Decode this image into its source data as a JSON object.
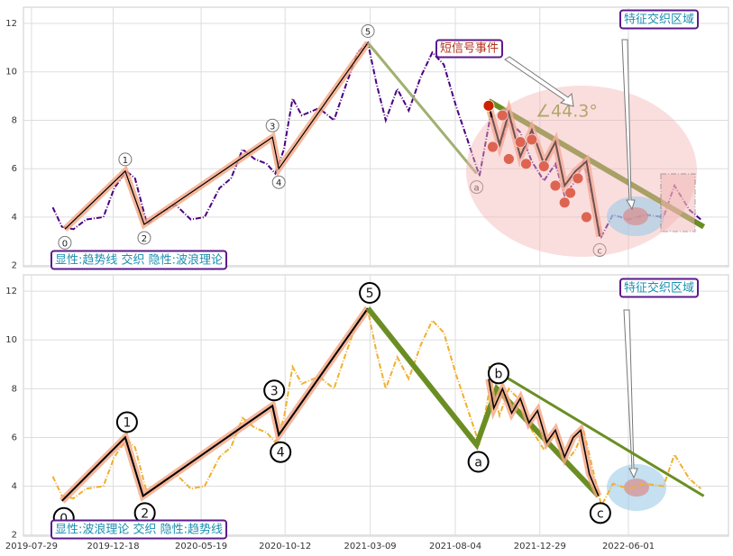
{
  "chart_data": [
    {
      "type": "line",
      "xlim": [
        "2019-07-15",
        "2022-11-22"
      ],
      "ylim": [
        1.95,
        12.67
      ],
      "yticks": [
        2,
        4,
        6,
        8,
        10,
        12
      ],
      "grid": true,
      "x": [
        "2019-09-04",
        "2019-09-20",
        "2019-10-10",
        "2019-11-01",
        "2019-12-01",
        "2019-12-20",
        "2020-01-10",
        "2020-01-25",
        "2020-02-15",
        "2020-03-10",
        "2020-04-05",
        "2020-05-01",
        "2020-05-25",
        "2020-06-20",
        "2020-07-10",
        "2020-07-30",
        "2020-08-20",
        "2020-09-10",
        "2020-09-25",
        "2020-10-10",
        "2020-10-25",
        "2020-11-10",
        "2020-12-10",
        "2021-01-05",
        "2021-01-25",
        "2021-02-15",
        "2021-03-05",
        "2021-03-20",
        "2021-04-05",
        "2021-04-25",
        "2021-05-15",
        "2021-06-05",
        "2021-06-25",
        "2021-07-15",
        "2021-08-05",
        "2021-08-25",
        "2021-09-15",
        "2021-10-05",
        "2021-10-20",
        "2021-11-05",
        "2021-11-25",
        "2021-12-15",
        "2022-01-05",
        "2022-01-25",
        "2022-02-10",
        "2022-03-01",
        "2022-03-15",
        "2022-04-01",
        "2022-04-15",
        "2022-05-05",
        "2022-06-01",
        "2022-07-01",
        "2022-08-01",
        "2022-08-20",
        "2022-09-15",
        "2022-10-05"
      ],
      "series": [
        {
          "color": "#4b0082",
          "values": [
            4.4,
            3.6,
            3.5,
            3.9,
            4.0,
            5.2,
            5.9,
            5.6,
            3.7,
            4.2,
            4.5,
            3.9,
            4.0,
            5.2,
            5.6,
            6.8,
            6.4,
            6.2,
            5.8,
            6.8,
            8.9,
            8.2,
            8.5,
            8.0,
            9.4,
            10.8,
            11.2,
            9.5,
            8.0,
            9.3,
            8.4,
            9.8,
            10.8,
            10.3,
            8.6,
            7.2,
            5.7,
            8.3,
            6.9,
            8.0,
            7.5,
            6.3,
            5.5,
            6.2,
            4.9,
            5.5,
            6.3,
            4.6,
            3.2,
            4.1,
            3.9,
            4.1,
            4.0,
            5.3,
            4.3,
            3.9
          ]
        }
      ],
      "waves": [
        {
          "color": "#000000",
          "halo": "#f4a582",
          "width": 1.2,
          "x": [
            "2019-09-25",
            "2020-01-08",
            "2020-02-10",
            "2020-09-20",
            "2020-10-01",
            "2021-03-05"
          ],
          "values": [
            3.5,
            5.9,
            3.7,
            7.3,
            6.0,
            11.2
          ],
          "labels": [
            "0",
            "1",
            "2",
            "3",
            "4",
            "5"
          ]
        },
        {
          "color": "#a0b070",
          "width": 3,
          "x": [
            "2021-03-05",
            "2021-09-10"
          ],
          "values": [
            11.2,
            5.8
          ],
          "labels": [
            null,
            "a"
          ]
        },
        {
          "color": "#000000",
          "halo": "#f4a582",
          "width": 2,
          "x": [
            "2021-10-01",
            "2021-10-20",
            "2021-11-05",
            "2021-11-25",
            "2021-12-15",
            "2022-01-05",
            "2022-01-25",
            "2022-02-10",
            "2022-03-01",
            "2022-03-20",
            "2022-04-12"
          ],
          "values": [
            8.6,
            7.0,
            8.3,
            6.5,
            7.6,
            6.2,
            7.1,
            5.3,
            5.9,
            6.3,
            3.2
          ],
          "labels": [
            null,
            null,
            null,
            null,
            null,
            null,
            null,
            null,
            null,
            null,
            "c"
          ]
        }
      ],
      "signals": {
        "color": "#cc2200",
        "x": [
          "2021-10-01",
          "2021-10-08",
          "2021-10-25",
          "2021-11-05",
          "2021-11-25",
          "2021-12-05",
          "2021-12-15",
          "2022-01-05",
          "2022-01-25",
          "2022-02-10",
          "2022-02-20",
          "2022-03-05",
          "2022-03-20"
        ],
        "values": [
          8.6,
          6.9,
          8.2,
          6.4,
          7.1,
          6.2,
          7.2,
          6.1,
          5.3,
          4.6,
          5.0,
          5.6,
          4.0
        ]
      },
      "trendline": {
        "color": "#6b8e23",
        "width": 6,
        "x": [
          "2021-10-01",
          "2022-10-10"
        ],
        "values": [
          8.8,
          3.6
        ]
      },
      "annotations": [
        "显性:趋势线 交织 隐性:波浪理论",
        "短信号事件",
        "特征交织区域"
      ],
      "angle_label": "∠44.3°"
    },
    {
      "type": "line",
      "xlim": [
        "2019-07-15",
        "2022-11-22"
      ],
      "ylim": [
        1.95,
        12.67
      ],
      "yticks": [
        2,
        4,
        6,
        8,
        10,
        12
      ],
      "grid": true,
      "xticks": [
        "2019-07-29",
        "2019-12-18",
        "2020-05-19",
        "2020-10-12",
        "2021-03-09",
        "2021-08-04",
        "2021-12-29",
        "2022-06-01"
      ],
      "x": [
        "2019-09-04",
        "2019-09-20",
        "2019-10-10",
        "2019-11-01",
        "2019-12-01",
        "2019-12-20",
        "2020-01-10",
        "2020-01-25",
        "2020-02-15",
        "2020-03-10",
        "2020-04-05",
        "2020-05-01",
        "2020-05-25",
        "2020-06-20",
        "2020-07-10",
        "2020-07-30",
        "2020-08-20",
        "2020-09-10",
        "2020-09-25",
        "2020-10-10",
        "2020-10-25",
        "2020-11-10",
        "2020-12-10",
        "2021-01-05",
        "2021-01-25",
        "2021-02-15",
        "2021-03-05",
        "2021-03-20",
        "2021-04-05",
        "2021-04-25",
        "2021-05-15",
        "2021-06-05",
        "2021-06-25",
        "2021-07-15",
        "2021-08-05",
        "2021-08-25",
        "2021-09-15",
        "2021-10-05",
        "2021-10-20",
        "2021-11-05",
        "2021-11-25",
        "2021-12-15",
        "2022-01-05",
        "2022-01-25",
        "2022-02-10",
        "2022-03-01",
        "2022-03-15",
        "2022-04-01",
        "2022-04-15",
        "2022-05-05",
        "2022-06-01",
        "2022-07-01",
        "2022-08-01",
        "2022-08-20",
        "2022-09-15",
        "2022-10-05"
      ],
      "series": [
        {
          "color": "#f0b030",
          "values": [
            4.4,
            3.6,
            3.5,
            3.9,
            4.0,
            5.2,
            5.9,
            5.6,
            3.7,
            4.2,
            4.5,
            3.9,
            4.0,
            5.2,
            5.6,
            6.8,
            6.4,
            6.2,
            5.8,
            6.8,
            8.9,
            8.2,
            8.5,
            8.0,
            9.4,
            10.8,
            11.2,
            9.5,
            8.0,
            9.3,
            8.4,
            9.8,
            10.8,
            10.3,
            8.6,
            7.2,
            5.7,
            8.3,
            6.9,
            8.0,
            7.5,
            6.3,
            5.5,
            6.2,
            4.9,
            5.5,
            6.3,
            4.6,
            3.2,
            4.1,
            3.9,
            4.1,
            4.0,
            5.3,
            4.3,
            3.9
          ]
        }
      ],
      "waves": [
        {
          "color": "#000000",
          "halo": "#f4a582",
          "width": 2,
          "x": [
            "2019-09-20",
            "2020-01-08",
            "2020-02-08",
            "2020-09-20",
            "2020-10-01",
            "2021-03-05"
          ],
          "values": [
            3.4,
            6.0,
            3.6,
            7.3,
            6.1,
            11.3
          ],
          "labels": [
            "0",
            "1",
            "2",
            "3",
            "4",
            "5"
          ]
        },
        {
          "color": "#6b8e23",
          "width": 6,
          "x": [
            "2021-03-05",
            "2021-09-10",
            "2021-10-15",
            "2022-04-10"
          ],
          "values": [
            11.3,
            5.7,
            8.0,
            3.6
          ],
          "labels": [
            null,
            "a",
            "b",
            "c"
          ]
        },
        {
          "color": "#000000",
          "halo": "#f4a582",
          "width": 1.5,
          "x": [
            "2021-10-01",
            "2021-10-10",
            "2021-10-25",
            "2021-11-10",
            "2021-11-25",
            "2021-12-10",
            "2021-12-25",
            "2022-01-10",
            "2022-01-25",
            "2022-02-10",
            "2022-02-25",
            "2022-03-10",
            "2022-03-25",
            "2022-04-10"
          ],
          "values": [
            8.4,
            7.2,
            8.0,
            7.0,
            7.6,
            6.6,
            7.1,
            5.8,
            6.3,
            5.2,
            6.0,
            6.3,
            4.5,
            3.6
          ],
          "labels": [
            null,
            null,
            null,
            null,
            null,
            null,
            null,
            null,
            null,
            null,
            null,
            null,
            null,
            null
          ]
        }
      ],
      "trendline": {
        "color": "#6b8e23",
        "width": 3,
        "x": [
          "2021-10-01",
          "2022-10-10"
        ],
        "values": [
          8.9,
          3.6
        ]
      },
      "annotations": [
        "显性:波浪理论 交织 隐性:趋势线",
        "特征交织区域"
      ]
    }
  ]
}
